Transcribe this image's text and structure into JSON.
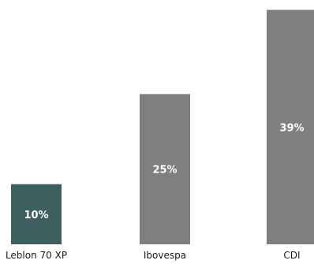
{
  "chart_data": {
    "type": "bar",
    "categories": [
      "Leblon 70 XP",
      "Ibovespa",
      "CDI"
    ],
    "values": [
      10,
      25,
      39
    ],
    "data_labels": [
      "10%",
      "25%",
      "39%"
    ],
    "colors": [
      "#3d5f5f",
      "#7f7f7f",
      "#7f7f7f"
    ],
    "label_color": "#ffffff",
    "ylim": [
      0,
      39.6
    ],
    "grid": false,
    "legend": "none"
  }
}
